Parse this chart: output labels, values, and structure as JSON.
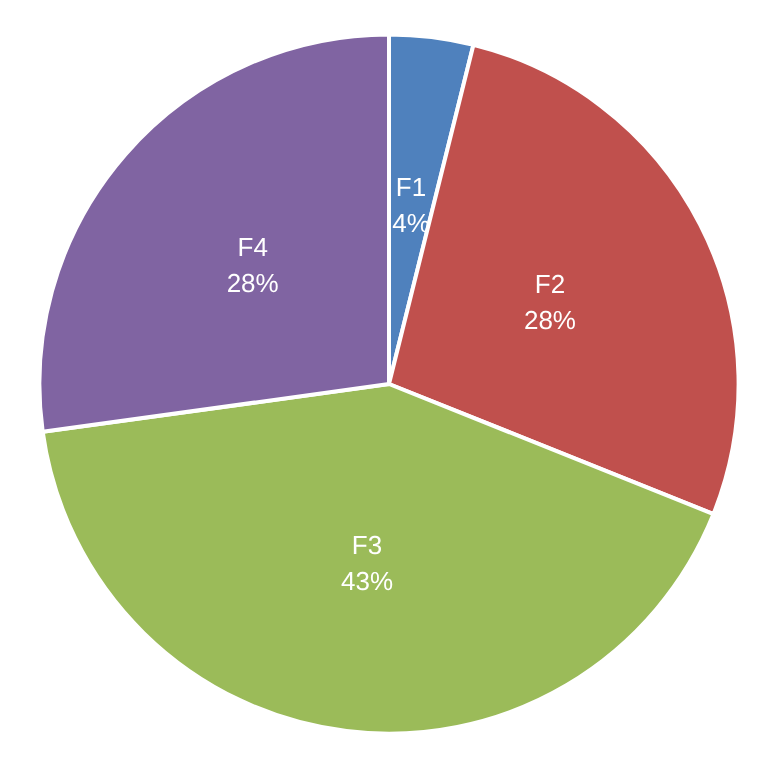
{
  "chart_data": {
    "type": "pie",
    "categories": [
      "F1",
      "F2",
      "F3",
      "F4"
    ],
    "values": [
      4,
      28,
      43,
      28
    ],
    "value_labels": [
      "4%",
      "28%",
      "43%",
      "28%"
    ],
    "colors": [
      "#4f81bd",
      "#c0504d",
      "#9bbb59",
      "#8064a2"
    ],
    "legend": false
  }
}
